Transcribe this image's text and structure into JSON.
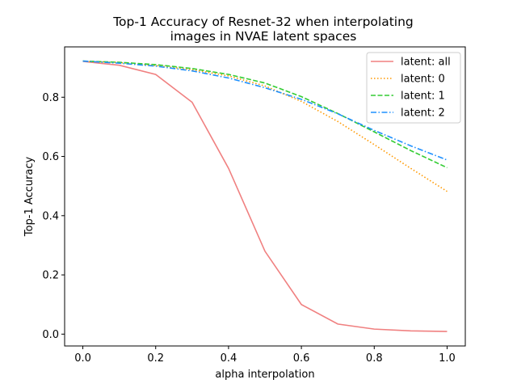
{
  "chart_data": {
    "type": "line",
    "title": "Top-1 Accuracy of Resnet-32 when interpolating\nimages in NVAE latent spaces",
    "title_lines": [
      "Top-1 Accuracy of Resnet-32 when interpolating",
      "images in NVAE latent spaces"
    ],
    "xlabel": "alpha interpolation",
    "ylabel": "Top-1 Accuracy",
    "xlim": [
      -0.05,
      1.05
    ],
    "ylim": [
      -0.04,
      0.97
    ],
    "xticks": [
      0.0,
      0.2,
      0.4,
      0.6,
      0.8,
      1.0
    ],
    "xtick_labels": [
      "0.0",
      "0.2",
      "0.4",
      "0.6",
      "0.8",
      "1.0"
    ],
    "yticks": [
      0.0,
      0.2,
      0.4,
      0.6,
      0.8
    ],
    "ytick_labels": [
      "0.0",
      "0.2",
      "0.4",
      "0.6",
      "0.8"
    ],
    "grid": false,
    "legend_position": "top-right",
    "x": [
      0.0,
      0.1,
      0.2,
      0.3,
      0.4,
      0.5,
      0.6,
      0.7,
      0.8,
      0.9,
      1.0
    ],
    "series": [
      {
        "name": "latent: all",
        "color": "#f08080",
        "dash": "solid",
        "values": [
          0.921,
          0.908,
          0.877,
          0.783,
          0.56,
          0.28,
          0.1,
          0.034,
          0.017,
          0.011,
          0.009
        ]
      },
      {
        "name": "latent: 0",
        "color": "#ff9900",
        "dash": "dotted",
        "values": [
          0.922,
          0.917,
          0.907,
          0.893,
          0.872,
          0.838,
          0.786,
          0.718,
          0.64,
          0.56,
          0.482
        ]
      },
      {
        "name": "latent: 1",
        "color": "#33cc33",
        "dash": "dashed",
        "values": [
          0.922,
          0.918,
          0.91,
          0.897,
          0.877,
          0.848,
          0.802,
          0.745,
          0.683,
          0.62,
          0.562
        ]
      },
      {
        "name": "latent: 2",
        "color": "#1e90ff",
        "dash": "dashdot",
        "values": [
          0.922,
          0.915,
          0.905,
          0.889,
          0.865,
          0.832,
          0.793,
          0.744,
          0.688,
          0.636,
          0.588
        ]
      }
    ]
  }
}
